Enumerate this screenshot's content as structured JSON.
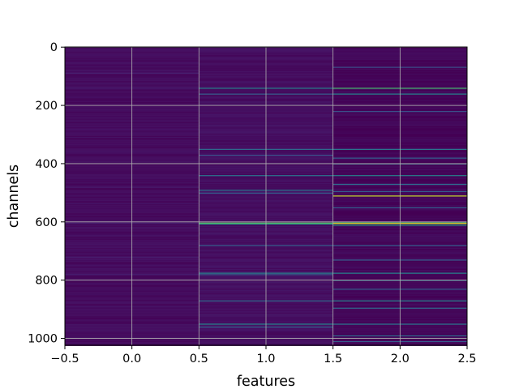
{
  "chart_data": {
    "type": "heatmap",
    "xlabel": "features",
    "ylabel": "channels",
    "x_ticks": [
      "−0.5",
      "0.0",
      "0.5",
      "1.0",
      "1.5",
      "2.0",
      "2.5"
    ],
    "x_tick_values": [
      -0.5,
      0.0,
      0.5,
      1.0,
      1.5,
      2.0,
      2.5
    ],
    "y_ticks": [
      "0",
      "200",
      "400",
      "600",
      "800",
      "1000"
    ],
    "y_tick_values": [
      0,
      200,
      400,
      600,
      800,
      1000
    ],
    "xlim": [
      -0.5,
      2.5
    ],
    "ylim": [
      1023.5,
      -0.5
    ],
    "columns": [
      0,
      1,
      2
    ],
    "n_rows": 1024,
    "colormap": "viridis",
    "grid": true,
    "column_base_levels": [
      0.04,
      0.05,
      0.02
    ],
    "highlight_rows": {
      "0": [
        {
          "row": 88,
          "value": 0.12
        },
        {
          "row": 140,
          "value": 0.1
        },
        {
          "row": 480,
          "value": 0.1
        },
        {
          "row": 603,
          "value": 0.12
        },
        {
          "row": 720,
          "value": 0.1
        },
        {
          "row": 780,
          "value": 0.11
        }
      ],
      "1": [
        {
          "row": 140,
          "value": 0.45
        },
        {
          "row": 160,
          "value": 0.3
        },
        {
          "row": 350,
          "value": 0.35
        },
        {
          "row": 370,
          "value": 0.25
        },
        {
          "row": 440,
          "value": 0.4
        },
        {
          "row": 490,
          "value": 0.4
        },
        {
          "row": 500,
          "value": 0.3
        },
        {
          "row": 603,
          "value": 0.75
        },
        {
          "row": 606,
          "value": 0.55
        },
        {
          "row": 680,
          "value": 0.3
        },
        {
          "row": 775,
          "value": 0.45
        },
        {
          "row": 780,
          "value": 0.3
        },
        {
          "row": 870,
          "value": 0.35
        },
        {
          "row": 950,
          "value": 0.45
        },
        {
          "row": 960,
          "value": 0.3
        }
      ],
      "2": [
        {
          "row": 68,
          "value": 0.25
        },
        {
          "row": 140,
          "value": 0.7
        },
        {
          "row": 160,
          "value": 0.45
        },
        {
          "row": 220,
          "value": 0.25
        },
        {
          "row": 350,
          "value": 0.4
        },
        {
          "row": 380,
          "value": 0.3
        },
        {
          "row": 400,
          "value": 0.35
        },
        {
          "row": 440,
          "value": 0.45
        },
        {
          "row": 470,
          "value": 0.35
        },
        {
          "row": 495,
          "value": 0.3
        },
        {
          "row": 510,
          "value": 0.92
        },
        {
          "row": 550,
          "value": 0.3
        },
        {
          "row": 600,
          "value": 0.7
        },
        {
          "row": 604,
          "value": 0.95
        },
        {
          "row": 610,
          "value": 0.55
        },
        {
          "row": 680,
          "value": 0.3
        },
        {
          "row": 730,
          "value": 0.3
        },
        {
          "row": 775,
          "value": 0.45
        },
        {
          "row": 800,
          "value": 0.4
        },
        {
          "row": 830,
          "value": 0.3
        },
        {
          "row": 870,
          "value": 0.45
        },
        {
          "row": 895,
          "value": 0.35
        },
        {
          "row": 950,
          "value": 0.4
        },
        {
          "row": 990,
          "value": 0.35
        },
        {
          "row": 1010,
          "value": 0.3
        }
      ]
    }
  }
}
